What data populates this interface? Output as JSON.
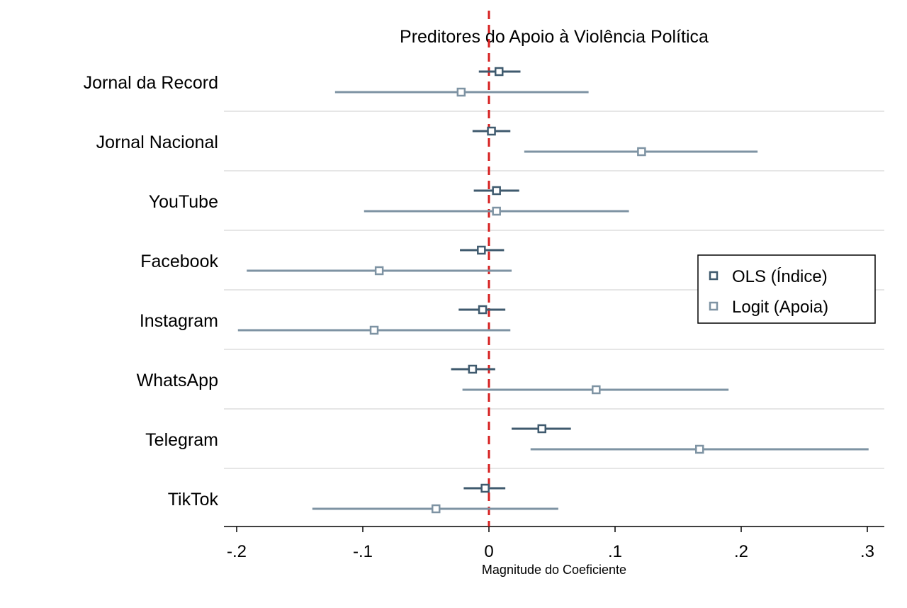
{
  "chart_data": {
    "type": "coefficient-plot",
    "title": "Preditores do Apoio à Violência Política",
    "xlabel": "Magnitude do Coeficiente",
    "xlim": [
      -0.21,
      0.315
    ],
    "xticks": [
      -0.2,
      -0.1,
      0,
      0.1,
      0.2,
      0.3
    ],
    "xtick_labels": [
      "-.2",
      "-.1",
      "0",
      ".1",
      ".2",
      ".3"
    ],
    "reference_line": {
      "x": 0,
      "color": "#d62020",
      "style": "dashed"
    },
    "grid": "horizontal separators between categories",
    "legend_position": "right",
    "categories": [
      "Jornal da Record",
      "Jornal Nacional",
      "YouTube",
      "Facebook",
      "Instagram",
      "WhatsApp",
      "Telegram",
      "TikTok"
    ],
    "series": [
      {
        "name": "OLS (Índice)",
        "color": "#3f5a6e",
        "estimates": [
          0.008,
          0.002,
          0.006,
          -0.006,
          -0.005,
          -0.013,
          0.042,
          -0.003
        ],
        "ci_low": [
          -0.008,
          -0.013,
          -0.012,
          -0.023,
          -0.024,
          -0.03,
          0.018,
          -0.02
        ],
        "ci_high": [
          0.025,
          0.017,
          0.024,
          0.012,
          0.013,
          0.005,
          0.065,
          0.013
        ]
      },
      {
        "name": "Logit (Apoia)",
        "color": "#7e93a3",
        "estimates": [
          -0.022,
          0.121,
          0.006,
          -0.087,
          -0.091,
          0.085,
          0.167,
          -0.042
        ],
        "ci_low": [
          -0.122,
          0.028,
          -0.099,
          -0.192,
          -0.199,
          -0.021,
          0.033,
          -0.14
        ],
        "ci_high": [
          0.079,
          0.213,
          0.111,
          0.018,
          0.017,
          0.19,
          0.301,
          0.055
        ]
      }
    ]
  }
}
